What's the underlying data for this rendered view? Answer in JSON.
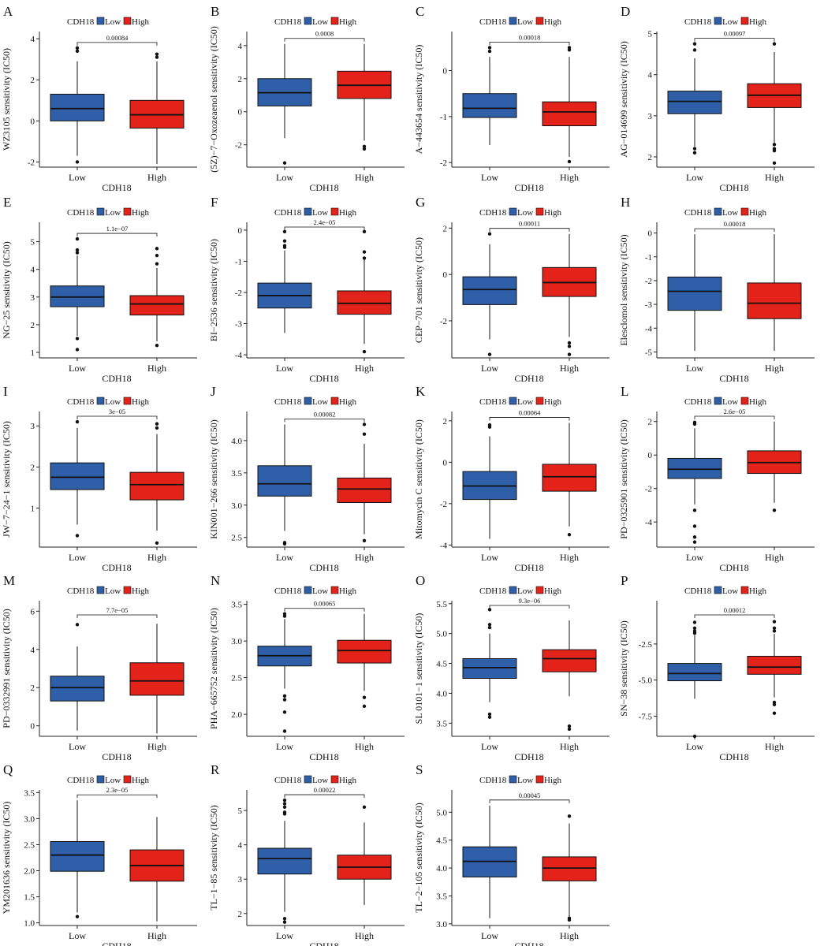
{
  "colors": {
    "low": "#2e5fa8",
    "high": "#e32219"
  },
  "group_labels": [
    "Low",
    "High"
  ],
  "chart_data": [
    {
      "type": "box",
      "panel": "A",
      "legend_title": "CDH18",
      "legend": [
        "Low",
        "High"
      ],
      "xlabel": "CDH18",
      "ylabel": "WZ3105 sensitivity (IC50)",
      "categories": [
        "Low",
        "High"
      ],
      "ylim": [
        -2.25,
        4.35
      ],
      "yticks": [
        -2,
        0,
        2,
        4
      ],
      "pvalue": "0.00084",
      "series": [
        {
          "name": "Low",
          "whisker_low": -1.7,
          "q1": 0.0,
          "median": 0.6,
          "q3": 1.3,
          "whisker_high": 2.9,
          "outliers": [
            3.4,
            3.55,
            -2.0
          ]
        },
        {
          "name": "High",
          "whisker_low": -2.1,
          "q1": -0.35,
          "median": 0.3,
          "q3": 1.0,
          "whisker_high": 2.9,
          "outliers": [
            3.1,
            3.25
          ]
        }
      ]
    },
    {
      "type": "box",
      "panel": "B",
      "legend_title": "CDH18",
      "legend": [
        "Low",
        "High"
      ],
      "xlabel": "CDH18",
      "ylabel": "(5Z)−7−Oxozeaenol sensitivity (IC50)",
      "categories": [
        "Low",
        "High"
      ],
      "ylim": [
        -3.35,
        4.85
      ],
      "yticks": [
        -2,
        0,
        2,
        4
      ],
      "pvalue": "0.0008",
      "series": [
        {
          "name": "Low",
          "whisker_low": -1.6,
          "q1": 0.35,
          "median": 1.15,
          "q3": 2.0,
          "whisker_high": 4.1,
          "outliers": [
            -3.1
          ]
        },
        {
          "name": "High",
          "whisker_low": -1.75,
          "q1": 0.8,
          "median": 1.6,
          "q3": 2.45,
          "whisker_high": 4.1,
          "outliers": [
            -2.1,
            -2.25
          ]
        }
      ]
    },
    {
      "type": "box",
      "panel": "C",
      "legend_title": "CDH18",
      "legend": [
        "Low",
        "High"
      ],
      "xlabel": "CDH18",
      "ylabel": "A−443654 sensitivity (IC50)",
      "categories": [
        "Low",
        "High"
      ],
      "ylim": [
        -2.1,
        0.85
      ],
      "yticks": [
        -2,
        -1,
        0
      ],
      "pvalue": "0.00018",
      "series": [
        {
          "name": "Low",
          "whisker_low": -1.62,
          "q1": -1.02,
          "median": -0.82,
          "q3": -0.5,
          "whisker_high": 0.3,
          "outliers": [
            0.42,
            0.5
          ]
        },
        {
          "name": "High",
          "whisker_low": -1.88,
          "q1": -1.2,
          "median": -0.9,
          "q3": -0.68,
          "whisker_high": 0.3,
          "outliers": [
            0.45,
            0.5,
            -1.98
          ]
        }
      ]
    },
    {
      "type": "box",
      "panel": "D",
      "legend_title": "CDH18",
      "legend": [
        "Low",
        "High"
      ],
      "xlabel": "CDH18",
      "ylabel": "AG−014699 sensitivity (IC50)",
      "categories": [
        "Low",
        "High"
      ],
      "ylim": [
        1.75,
        5.05
      ],
      "yticks": [
        2,
        3,
        4,
        5
      ],
      "pvalue": "0.00097",
      "series": [
        {
          "name": "Low",
          "whisker_low": 2.25,
          "q1": 3.05,
          "median": 3.35,
          "q3": 3.6,
          "whisker_high": 4.4,
          "outliers": [
            4.6,
            4.75,
            2.2,
            2.1
          ]
        },
        {
          "name": "High",
          "whisker_low": 2.35,
          "q1": 3.2,
          "median": 3.5,
          "q3": 3.78,
          "whisker_high": 4.55,
          "outliers": [
            4.75,
            2.3,
            2.2,
            2.15,
            1.85
          ]
        }
      ]
    },
    {
      "type": "box",
      "panel": "E",
      "legend_title": "CDH18",
      "legend": [
        "Low",
        "High"
      ],
      "xlabel": "CDH18",
      "ylabel": "NG−25 sensitivity (IC50)",
      "categories": [
        "Low",
        "High"
      ],
      "ylim": [
        0.8,
        5.7
      ],
      "yticks": [
        1,
        2,
        3,
        4,
        5
      ],
      "pvalue": "1.1e−07",
      "series": [
        {
          "name": "Low",
          "whisker_low": 1.6,
          "q1": 2.65,
          "median": 3.0,
          "q3": 3.4,
          "whisker_high": 4.5,
          "outliers": [
            5.1,
            4.7,
            4.6,
            1.5,
            1.1
          ]
        },
        {
          "name": "High",
          "whisker_low": 1.4,
          "q1": 2.35,
          "median": 2.75,
          "q3": 3.05,
          "whisker_high": 4.05,
          "outliers": [
            4.75,
            4.5,
            4.2,
            1.25
          ]
        }
      ]
    },
    {
      "type": "box",
      "panel": "F",
      "legend_title": "CDH18",
      "legend": [
        "Low",
        "High"
      ],
      "xlabel": "CDH18",
      "ylabel": "BI−2536 sensitivity (IC50)",
      "categories": [
        "Low",
        "High"
      ],
      "ylim": [
        -4.1,
        0.25
      ],
      "yticks": [
        -4,
        -3,
        -2,
        -1,
        0
      ],
      "pvalue": "2.4e−05",
      "series": [
        {
          "name": "Low",
          "whisker_low": -3.3,
          "q1": -2.5,
          "median": -2.1,
          "q3": -1.7,
          "whisker_high": -0.65,
          "outliers": [
            -0.05,
            -0.35,
            -0.5,
            -0.55
          ]
        },
        {
          "name": "High",
          "whisker_low": -3.65,
          "q1": -2.7,
          "median": -2.35,
          "q3": -1.95,
          "whisker_high": -0.95,
          "outliers": [
            -0.05,
            -0.7,
            -0.9,
            -3.9
          ]
        }
      ]
    },
    {
      "type": "box",
      "panel": "G",
      "legend_title": "CDH18",
      "legend": [
        "Low",
        "High"
      ],
      "xlabel": "CDH18",
      "ylabel": "CEP−701 sensitivity (IC50)",
      "categories": [
        "Low",
        "High"
      ],
      "ylim": [
        -3.6,
        2.25
      ],
      "yticks": [
        -2,
        0,
        2
      ],
      "pvalue": "0.00011",
      "series": [
        {
          "name": "Low",
          "whisker_low": -2.8,
          "q1": -1.3,
          "median": -0.65,
          "q3": -0.1,
          "whisker_high": 1.3,
          "outliers": [
            1.75,
            -3.45
          ]
        },
        {
          "name": "High",
          "whisker_low": -2.7,
          "q1": -0.95,
          "median": -0.35,
          "q3": 0.3,
          "whisker_high": 1.75,
          "outliers": [
            -2.95,
            -3.1,
            -3.45
          ]
        }
      ]
    },
    {
      "type": "box",
      "panel": "H",
      "legend_title": "CDH18",
      "legend": [
        "Low",
        "High"
      ],
      "xlabel": "CDH18",
      "ylabel": "Elesclomol sensitivity (IC50)",
      "categories": [
        "Low",
        "High"
      ],
      "ylim": [
        -5.25,
        0.45
      ],
      "yticks": [
        -5,
        -4,
        -3,
        -2,
        -1,
        0
      ],
      "pvalue": "0.00018",
      "series": [
        {
          "name": "Low",
          "whisker_low": -4.95,
          "q1": -3.25,
          "median": -2.45,
          "q3": -1.85,
          "whisker_high": -0.05,
          "outliers": []
        },
        {
          "name": "High",
          "whisker_low": -4.95,
          "q1": -3.6,
          "median": -2.95,
          "q3": -2.1,
          "whisker_high": -0.05,
          "outliers": []
        }
      ]
    },
    {
      "type": "box",
      "panel": "I",
      "legend_title": "CDH18",
      "legend": [
        "Low",
        "High"
      ],
      "xlabel": "CDH18",
      "ylabel": "JW−7−24−1 sensitivity (IC50)",
      "categories": [
        "Low",
        "High"
      ],
      "ylim": [
        0.05,
        3.35
      ],
      "yticks": [
        1,
        2,
        3
      ],
      "pvalue": "3e−05",
      "series": [
        {
          "name": "Low",
          "whisker_low": 0.6,
          "q1": 1.45,
          "median": 1.75,
          "q3": 2.1,
          "whisker_high": 2.95,
          "outliers": [
            3.1,
            0.33
          ]
        },
        {
          "name": "High",
          "whisker_low": 0.45,
          "q1": 1.2,
          "median": 1.57,
          "q3": 1.87,
          "whisker_high": 2.8,
          "outliers": [
            3.05,
            2.95,
            0.15
          ]
        }
      ]
    },
    {
      "type": "box",
      "panel": "J",
      "legend_title": "CDH18",
      "legend": [
        "Low",
        "High"
      ],
      "xlabel": "CDH18",
      "ylabel": "KIN001−266 sensitivity (IC50)",
      "categories": [
        "Low",
        "High"
      ],
      "ylim": [
        2.35,
        4.45
      ],
      "yticks": [
        2.5,
        3.0,
        3.5,
        4.0
      ],
      "pvalue": "0.00082",
      "series": [
        {
          "name": "Low",
          "whisker_low": 2.6,
          "q1": 3.14,
          "median": 3.33,
          "q3": 3.61,
          "whisker_high": 4.25,
          "outliers": [
            2.42,
            2.4
          ]
        },
        {
          "name": "High",
          "whisker_low": 2.55,
          "q1": 3.04,
          "median": 3.25,
          "q3": 3.42,
          "whisker_high": 3.95,
          "outliers": [
            4.25,
            4.1,
            2.45
          ]
        }
      ]
    },
    {
      "type": "box",
      "panel": "K",
      "legend_title": "CDH18",
      "legend": [
        "Low",
        "High"
      ],
      "xlabel": "CDH18",
      "ylabel": "Mitomycin C sensitivity (IC50)",
      "categories": [
        "Low",
        "High"
      ],
      "ylim": [
        -4.1,
        2.45
      ],
      "yticks": [
        -4,
        -2,
        0,
        2
      ],
      "pvalue": "0.00064",
      "series": [
        {
          "name": "Low",
          "whisker_low": -3.7,
          "q1": -1.8,
          "median": -1.15,
          "q3": -0.45,
          "whisker_high": 1.25,
          "outliers": [
            1.7,
            1.8
          ]
        },
        {
          "name": "High",
          "whisker_low": -3.1,
          "q1": -1.4,
          "median": -0.7,
          "q3": -0.1,
          "whisker_high": 1.9,
          "outliers": [
            -3.5
          ]
        }
      ]
    },
    {
      "type": "box",
      "panel": "L",
      "legend_title": "CDH18",
      "legend": [
        "Low",
        "High"
      ],
      "xlabel": "CDH18",
      "ylabel": "PD−0325901 sensitivity (IC50)",
      "categories": [
        "Low",
        "High"
      ],
      "ylim": [
        -5.5,
        2.6
      ],
      "yticks": [
        -4,
        -2,
        0,
        2
      ],
      "pvalue": "2.6e−05",
      "series": [
        {
          "name": "Low",
          "whisker_low": -2.95,
          "q1": -1.4,
          "median": -0.85,
          "q3": -0.2,
          "whisker_high": 1.6,
          "outliers": [
            1.85,
            1.95,
            -3.3,
            -4.25,
            -4.9,
            -5.2
          ]
        },
        {
          "name": "High",
          "whisker_low": -2.85,
          "q1": -1.1,
          "median": -0.45,
          "q3": 0.25,
          "whisker_high": 2.0,
          "outliers": [
            -3.3
          ]
        }
      ]
    },
    {
      "type": "box",
      "panel": "M",
      "legend_title": "CDH18",
      "legend": [
        "Low",
        "High"
      ],
      "xlabel": "CDH18",
      "ylabel": "PD−0332991 sensitivity (IC50)",
      "categories": [
        "Low",
        "High"
      ],
      "ylim": [
        -0.55,
        6.55
      ],
      "yticks": [
        0,
        2,
        4,
        6
      ],
      "pvalue": "7.7e−05",
      "series": [
        {
          "name": "Low",
          "whisker_low": -0.25,
          "q1": 1.3,
          "median": 2.0,
          "q3": 2.6,
          "whisker_high": 4.15,
          "outliers": [
            5.3
          ]
        },
        {
          "name": "High",
          "whisker_low": -0.4,
          "q1": 1.6,
          "median": 2.35,
          "q3": 3.3,
          "whisker_high": 5.35,
          "outliers": []
        }
      ]
    },
    {
      "type": "box",
      "panel": "N",
      "legend_title": "CDH18",
      "legend": [
        "Low",
        "High"
      ],
      "xlabel": "CDH18",
      "ylabel": "PHA−665752 sensitivity (IC50)",
      "categories": [
        "Low",
        "High"
      ],
      "ylim": [
        1.7,
        3.55
      ],
      "yticks": [
        2.0,
        2.5,
        3.0,
        3.5
      ],
      "pvalue": "0.00065",
      "series": [
        {
          "name": "Low",
          "whisker_low": 2.35,
          "q1": 2.66,
          "median": 2.8,
          "q3": 2.93,
          "whisker_high": 3.3,
          "outliers": [
            3.37,
            3.34,
            2.25,
            2.2,
            2.03,
            1.77
          ]
        },
        {
          "name": "High",
          "whisker_low": 2.32,
          "q1": 2.7,
          "median": 2.87,
          "q3": 3.01,
          "whisker_high": 3.37,
          "outliers": [
            2.23,
            2.11
          ]
        }
      ]
    },
    {
      "type": "box",
      "panel": "O",
      "legend_title": "CDH18",
      "legend": [
        "Low",
        "High"
      ],
      "xlabel": "CDH18",
      "ylabel": "SL 0101−1 sensitivity (IC50)",
      "categories": [
        "Low",
        "High"
      ],
      "ylim": [
        3.28,
        5.55
      ],
      "yticks": [
        3.5,
        4.0,
        4.5,
        5.0,
        5.5
      ],
      "pvalue": "9.3e−06",
      "series": [
        {
          "name": "Low",
          "whisker_low": 3.85,
          "q1": 4.25,
          "median": 4.43,
          "q3": 4.58,
          "whisker_high": 5.0,
          "outliers": [
            5.4,
            5.15,
            5.1,
            3.65,
            3.6
          ]
        },
        {
          "name": "High",
          "whisker_low": 3.95,
          "q1": 4.36,
          "median": 4.58,
          "q3": 4.73,
          "whisker_high": 5.22,
          "outliers": [
            3.45,
            3.4
          ]
        }
      ]
    },
    {
      "type": "box",
      "panel": "P",
      "legend_title": "CDH18",
      "legend": [
        "Low",
        "High"
      ],
      "xlabel": "CDH18",
      "ylabel": "SN−38 sensitivity (IC50)",
      "categories": [
        "Low",
        "High"
      ],
      "ylim": [
        -8.9,
        0.5
      ],
      "yticks": [
        -7.5,
        -5.0,
        -2.5
      ],
      "pvalue": "0.00012",
      "series": [
        {
          "name": "Low",
          "whisker_low": -6.3,
          "q1": -5.05,
          "median": -4.55,
          "q3": -3.85,
          "whisker_high": -1.9,
          "outliers": [
            -1.0,
            -1.4,
            -1.6,
            -1.75,
            -8.9
          ]
        },
        {
          "name": "High",
          "whisker_low": -6.2,
          "q1": -4.6,
          "median": -4.1,
          "q3": -3.35,
          "whisker_high": -1.8,
          "outliers": [
            -0.95,
            -1.4,
            -1.6,
            -6.55,
            -6.7,
            -7.3
          ]
        }
      ]
    },
    {
      "type": "box",
      "panel": "Q",
      "legend_title": "CDH18",
      "legend": [
        "Low",
        "High"
      ],
      "xlabel": "CDH18",
      "ylabel": "YM201636 sensitivity (IC50)",
      "categories": [
        "Low",
        "High"
      ],
      "ylim": [
        0.95,
        3.55
      ],
      "yticks": [
        1.0,
        1.5,
        2.0,
        2.5,
        3.0,
        3.5
      ],
      "pvalue": "2.3e−05",
      "series": [
        {
          "name": "Low",
          "whisker_low": 1.2,
          "q1": 1.99,
          "median": 2.3,
          "q3": 2.56,
          "whisker_high": 3.35,
          "outliers": [
            1.12
          ]
        },
        {
          "name": "High",
          "whisker_low": 1.03,
          "q1": 1.8,
          "median": 2.1,
          "q3": 2.4,
          "whisker_high": 3.03,
          "outliers": []
        }
      ]
    },
    {
      "type": "box",
      "panel": "R",
      "legend_title": "CDH18",
      "legend": [
        "Low",
        "High"
      ],
      "xlabel": "CDH18",
      "ylabel": "TL−1−85 sensitivity (IC50)",
      "categories": [
        "Low",
        "High"
      ],
      "ylim": [
        1.65,
        5.6
      ],
      "yticks": [
        2,
        3,
        4,
        5
      ],
      "pvalue": "0.00022",
      "series": [
        {
          "name": "Low",
          "whisker_low": 2.05,
          "q1": 3.15,
          "median": 3.6,
          "q3": 3.9,
          "whisker_high": 4.7,
          "outliers": [
            5.3,
            5.2,
            5.1,
            4.95,
            4.9,
            1.85,
            1.75
          ]
        },
        {
          "name": "High",
          "whisker_low": 2.25,
          "q1": 3.0,
          "median": 3.35,
          "q3": 3.7,
          "whisker_high": 4.65,
          "outliers": [
            5.1
          ]
        }
      ]
    },
    {
      "type": "box",
      "panel": "S",
      "legend_title": "CDH18",
      "legend": [
        "Low",
        "High"
      ],
      "xlabel": "CDH18",
      "ylabel": "TL−2−105 sensitivity (IC50)",
      "categories": [
        "Low",
        "High"
      ],
      "ylim": [
        2.97,
        5.4
      ],
      "yticks": [
        3.0,
        3.5,
        4.0,
        4.5,
        5.0
      ],
      "pvalue": "0.00045",
      "series": [
        {
          "name": "Low",
          "whisker_low": 3.1,
          "q1": 3.84,
          "median": 4.12,
          "q3": 4.38,
          "whisker_high": 5.12,
          "outliers": []
        },
        {
          "name": "High",
          "whisker_low": 3.12,
          "q1": 3.77,
          "median": 4.0,
          "q3": 4.2,
          "whisker_high": 4.8,
          "outliers": [
            4.93,
            3.1,
            3.07
          ]
        }
      ]
    }
  ]
}
